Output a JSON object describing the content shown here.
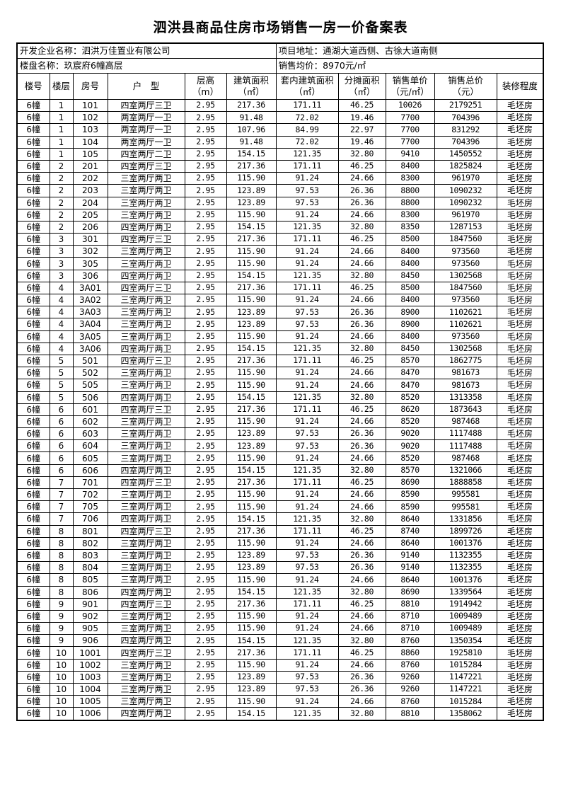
{
  "title": "泗洪县商品住房市场销售一房一价备案表",
  "info": {
    "developer": "开发企业名称：泗洪万佳置业有限公司",
    "address": "项目地址：通湖大道西侧、古徐大道南侧",
    "project": "楼盘名称：玖宸府6幢高层",
    "avg_price": "销售均价：8970元/㎡"
  },
  "headers": [
    [
      "楼号",
      ""
    ],
    [
      "楼层",
      ""
    ],
    [
      "房号",
      ""
    ],
    [
      "户　型",
      ""
    ],
    [
      "层高",
      "（m）"
    ],
    [
      "建筑面积",
      "（㎡）"
    ],
    [
      "套内建筑面积",
      "（㎡）"
    ],
    [
      "分摊面积",
      "（㎡）"
    ],
    [
      "销售单价",
      "（元/㎡）"
    ],
    [
      "销售总价",
      "（元）"
    ],
    [
      "装修程度",
      ""
    ]
  ],
  "rows": [
    [
      "6幢",
      "1",
      "101",
      "四室两厅三卫",
      "2.95",
      "217.36",
      "171.11",
      "46.25",
      "10026",
      "2179251",
      "毛坯房"
    ],
    [
      "6幢",
      "1",
      "102",
      "两室两厅一卫",
      "2.95",
      "91.48",
      "72.02",
      "19.46",
      "7700",
      "704396",
      "毛坯房"
    ],
    [
      "6幢",
      "1",
      "103",
      "两室两厅一卫",
      "2.95",
      "107.96",
      "84.99",
      "22.97",
      "7700",
      "831292",
      "毛坯房"
    ],
    [
      "6幢",
      "1",
      "104",
      "两室两厅一卫",
      "2.95",
      "91.48",
      "72.02",
      "19.46",
      "7700",
      "704396",
      "毛坯房"
    ],
    [
      "6幢",
      "1",
      "105",
      "四室两厅二卫",
      "2.95",
      "154.15",
      "121.35",
      "32.80",
      "9410",
      "1450552",
      "毛坯房"
    ],
    [
      "6幢",
      "2",
      "201",
      "四室两厅三卫",
      "2.95",
      "217.36",
      "171.11",
      "46.25",
      "8400",
      "1825824",
      "毛坯房"
    ],
    [
      "6幢",
      "2",
      "202",
      "三室两厅两卫",
      "2.95",
      "115.90",
      "91.24",
      "24.66",
      "8300",
      "961970",
      "毛坯房"
    ],
    [
      "6幢",
      "2",
      "203",
      "三室两厅两卫",
      "2.95",
      "123.89",
      "97.53",
      "26.36",
      "8800",
      "1090232",
      "毛坯房"
    ],
    [
      "6幢",
      "2",
      "204",
      "三室两厅两卫",
      "2.95",
      "123.89",
      "97.53",
      "26.36",
      "8800",
      "1090232",
      "毛坯房"
    ],
    [
      "6幢",
      "2",
      "205",
      "三室两厅两卫",
      "2.95",
      "115.90",
      "91.24",
      "24.66",
      "8300",
      "961970",
      "毛坯房"
    ],
    [
      "6幢",
      "2",
      "206",
      "四室两厅两卫",
      "2.95",
      "154.15",
      "121.35",
      "32.80",
      "8350",
      "1287153",
      "毛坯房"
    ],
    [
      "6幢",
      "3",
      "301",
      "四室两厅三卫",
      "2.95",
      "217.36",
      "171.11",
      "46.25",
      "8500",
      "1847560",
      "毛坯房"
    ],
    [
      "6幢",
      "3",
      "302",
      "三室两厅两卫",
      "2.95",
      "115.90",
      "91.24",
      "24.66",
      "8400",
      "973560",
      "毛坯房"
    ],
    [
      "6幢",
      "3",
      "305",
      "三室两厅两卫",
      "2.95",
      "115.90",
      "91.24",
      "24.66",
      "8400",
      "973560",
      "毛坯房"
    ],
    [
      "6幢",
      "3",
      "306",
      "四室两厅两卫",
      "2.95",
      "154.15",
      "121.35",
      "32.80",
      "8450",
      "1302568",
      "毛坯房"
    ],
    [
      "6幢",
      "4",
      "3A01",
      "四室两厅三卫",
      "2.95",
      "217.36",
      "171.11",
      "46.25",
      "8500",
      "1847560",
      "毛坯房"
    ],
    [
      "6幢",
      "4",
      "3A02",
      "三室两厅两卫",
      "2.95",
      "115.90",
      "91.24",
      "24.66",
      "8400",
      "973560",
      "毛坯房"
    ],
    [
      "6幢",
      "4",
      "3A03",
      "三室两厅两卫",
      "2.95",
      "123.89",
      "97.53",
      "26.36",
      "8900",
      "1102621",
      "毛坯房"
    ],
    [
      "6幢",
      "4",
      "3A04",
      "三室两厅两卫",
      "2.95",
      "123.89",
      "97.53",
      "26.36",
      "8900",
      "1102621",
      "毛坯房"
    ],
    [
      "6幢",
      "4",
      "3A05",
      "三室两厅两卫",
      "2.95",
      "115.90",
      "91.24",
      "24.66",
      "8400",
      "973560",
      "毛坯房"
    ],
    [
      "6幢",
      "4",
      "3A06",
      "四室两厅两卫",
      "2.95",
      "154.15",
      "121.35",
      "32.80",
      "8450",
      "1302568",
      "毛坯房"
    ],
    [
      "6幢",
      "5",
      "501",
      "四室两厅三卫",
      "2.95",
      "217.36",
      "171.11",
      "46.25",
      "8570",
      "1862775",
      "毛坯房"
    ],
    [
      "6幢",
      "5",
      "502",
      "三室两厅两卫",
      "2.95",
      "115.90",
      "91.24",
      "24.66",
      "8470",
      "981673",
      "毛坯房"
    ],
    [
      "6幢",
      "5",
      "505",
      "三室两厅两卫",
      "2.95",
      "115.90",
      "91.24",
      "24.66",
      "8470",
      "981673",
      "毛坯房"
    ],
    [
      "6幢",
      "5",
      "506",
      "四室两厅两卫",
      "2.95",
      "154.15",
      "121.35",
      "32.80",
      "8520",
      "1313358",
      "毛坯房"
    ],
    [
      "6幢",
      "6",
      "601",
      "四室两厅三卫",
      "2.95",
      "217.36",
      "171.11",
      "46.25",
      "8620",
      "1873643",
      "毛坯房"
    ],
    [
      "6幢",
      "6",
      "602",
      "三室两厅两卫",
      "2.95",
      "115.90",
      "91.24",
      "24.66",
      "8520",
      "987468",
      "毛坯房"
    ],
    [
      "6幢",
      "6",
      "603",
      "三室两厅两卫",
      "2.95",
      "123.89",
      "97.53",
      "26.36",
      "9020",
      "1117488",
      "毛坯房"
    ],
    [
      "6幢",
      "6",
      "604",
      "三室两厅两卫",
      "2.95",
      "123.89",
      "97.53",
      "26.36",
      "9020",
      "1117488",
      "毛坯房"
    ],
    [
      "6幢",
      "6",
      "605",
      "三室两厅两卫",
      "2.95",
      "115.90",
      "91.24",
      "24.66",
      "8520",
      "987468",
      "毛坯房"
    ],
    [
      "6幢",
      "6",
      "606",
      "四室两厅两卫",
      "2.95",
      "154.15",
      "121.35",
      "32.80",
      "8570",
      "1321066",
      "毛坯房"
    ],
    [
      "6幢",
      "7",
      "701",
      "四室两厅三卫",
      "2.95",
      "217.36",
      "171.11",
      "46.25",
      "8690",
      "1888858",
      "毛坯房"
    ],
    [
      "6幢",
      "7",
      "702",
      "三室两厅两卫",
      "2.95",
      "115.90",
      "91.24",
      "24.66",
      "8590",
      "995581",
      "毛坯房"
    ],
    [
      "6幢",
      "7",
      "705",
      "三室两厅两卫",
      "2.95",
      "115.90",
      "91.24",
      "24.66",
      "8590",
      "995581",
      "毛坯房"
    ],
    [
      "6幢",
      "7",
      "706",
      "四室两厅两卫",
      "2.95",
      "154.15",
      "121.35",
      "32.80",
      "8640",
      "1331856",
      "毛坯房"
    ],
    [
      "6幢",
      "8",
      "801",
      "四室两厅三卫",
      "2.95",
      "217.36",
      "171.11",
      "46.25",
      "8740",
      "1899726",
      "毛坯房"
    ],
    [
      "6幢",
      "8",
      "802",
      "三室两厅两卫",
      "2.95",
      "115.90",
      "91.24",
      "24.66",
      "8640",
      "1001376",
      "毛坯房"
    ],
    [
      "6幢",
      "8",
      "803",
      "三室两厅两卫",
      "2.95",
      "123.89",
      "97.53",
      "26.36",
      "9140",
      "1132355",
      "毛坯房"
    ],
    [
      "6幢",
      "8",
      "804",
      "三室两厅两卫",
      "2.95",
      "123.89",
      "97.53",
      "26.36",
      "9140",
      "1132355",
      "毛坯房"
    ],
    [
      "6幢",
      "8",
      "805",
      "三室两厅两卫",
      "2.95",
      "115.90",
      "91.24",
      "24.66",
      "8640",
      "1001376",
      "毛坯房"
    ],
    [
      "6幢",
      "8",
      "806",
      "四室两厅两卫",
      "2.95",
      "154.15",
      "121.35",
      "32.80",
      "8690",
      "1339564",
      "毛坯房"
    ],
    [
      "6幢",
      "9",
      "901",
      "四室两厅三卫",
      "2.95",
      "217.36",
      "171.11",
      "46.25",
      "8810",
      "1914942",
      "毛坯房"
    ],
    [
      "6幢",
      "9",
      "902",
      "三室两厅两卫",
      "2.95",
      "115.90",
      "91.24",
      "24.66",
      "8710",
      "1009489",
      "毛坯房"
    ],
    [
      "6幢",
      "9",
      "905",
      "三室两厅两卫",
      "2.95",
      "115.90",
      "91.24",
      "24.66",
      "8710",
      "1009489",
      "毛坯房"
    ],
    [
      "6幢",
      "9",
      "906",
      "四室两厅两卫",
      "2.95",
      "154.15",
      "121.35",
      "32.80",
      "8760",
      "1350354",
      "毛坯房"
    ],
    [
      "6幢",
      "10",
      "1001",
      "四室两厅三卫",
      "2.95",
      "217.36",
      "171.11",
      "46.25",
      "8860",
      "1925810",
      "毛坯房"
    ],
    [
      "6幢",
      "10",
      "1002",
      "三室两厅两卫",
      "2.95",
      "115.90",
      "91.24",
      "24.66",
      "8760",
      "1015284",
      "毛坯房"
    ],
    [
      "6幢",
      "10",
      "1003",
      "三室两厅两卫",
      "2.95",
      "123.89",
      "97.53",
      "26.36",
      "9260",
      "1147221",
      "毛坯房"
    ],
    [
      "6幢",
      "10",
      "1004",
      "三室两厅两卫",
      "2.95",
      "123.89",
      "97.53",
      "26.36",
      "9260",
      "1147221",
      "毛坯房"
    ],
    [
      "6幢",
      "10",
      "1005",
      "三室两厅两卫",
      "2.95",
      "115.90",
      "91.24",
      "24.66",
      "8760",
      "1015284",
      "毛坯房"
    ],
    [
      "6幢",
      "10",
      "1006",
      "四室两厅两卫",
      "2.95",
      "154.15",
      "121.35",
      "32.80",
      "8810",
      "1358062",
      "毛坯房"
    ]
  ]
}
